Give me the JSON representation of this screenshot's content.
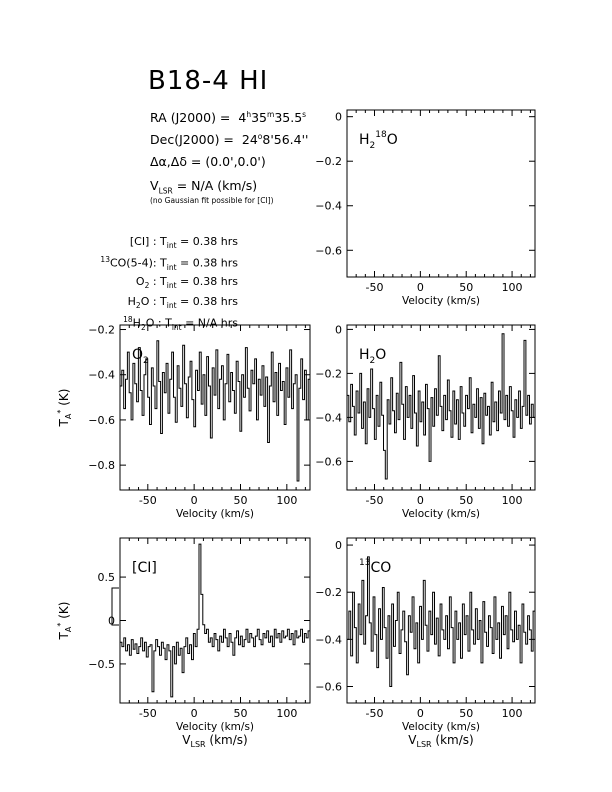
{
  "header": {
    "title": "B18-4 HI",
    "ra_label": "RA (J2000) =",
    "ra_h": "4",
    "ra_hu": "h",
    "ra_m": "35",
    "ra_mu": "m",
    "ra_s": "35.5",
    "ra_su": "s",
    "dec_label": "Dec(J2000) =",
    "dec_d": "24",
    "dec_du": "o",
    "dec_rest": "8'56.4''",
    "offset_label": "Δα,Δδ = (0.0',0.0')",
    "vlsr_v": "V",
    "vlsr_sub": "LSR",
    "vlsr_rest": " = N/A  (km/s)",
    "gauss_note": "(no Gaussian fit possible for [CI])",
    "t_int": [
      {
        "pre": "",
        "sup": "",
        "sub": "",
        "post": "[CI] : T",
        "tsub": "int",
        "value": " = 0.38 hrs"
      },
      {
        "pre": "",
        "sup": "13",
        "sub": "",
        "post": "CO(5-4): T",
        "tsub": "int",
        "value": " = 0.38 hrs"
      },
      {
        "pre": "O",
        "sup": "",
        "sub": "2",
        "post": " : T",
        "tsub": "int",
        "value": " = 0.38 hrs"
      },
      {
        "pre": "H",
        "sup": "",
        "sub": "2",
        "post": "O : T",
        "tsub": "int",
        "value": " = 0.38 hrs"
      },
      {
        "pre": "H",
        "sup": "18",
        "sub": "2",
        "post": "O : T",
        "tsub": "int",
        "value": " = N/A  hrs"
      }
    ]
  },
  "colors": {
    "line": "#000000",
    "background": "#ffffff"
  },
  "chart_data": [
    {
      "id": "h218o",
      "type": "line",
      "label_parts": [
        {
          "t": "H",
          "s": ""
        },
        {
          "t": "2",
          "s": "sub"
        },
        {
          "t": "18",
          "s": "sup"
        },
        {
          "t": "O",
          "s": ""
        }
      ],
      "xlabel": "Velocity (km/s)",
      "xlabel2": "",
      "ylabel": "",
      "xlim": [
        -80,
        125
      ],
      "ylim": [
        -0.72,
        0.03
      ],
      "xticks": [
        -50,
        0,
        50,
        100
      ],
      "yticks": [
        0,
        -0.2,
        -0.4,
        -0.6
      ],
      "ytick_labels": [
        "0",
        "−0.2",
        "−0.4",
        "−0.6"
      ],
      "series": []
    },
    {
      "id": "o2",
      "type": "line",
      "label_parts": [
        {
          "t": "O",
          "s": ""
        },
        {
          "t": "2",
          "s": "sub"
        }
      ],
      "xlabel": "Velocity (km/s)",
      "xlabel2": "",
      "ylabel": "T_A* (K)",
      "xlim": [
        -80,
        125
      ],
      "ylim": [
        -0.91,
        -0.18
      ],
      "xticks": [
        -50,
        0,
        50,
        100
      ],
      "yticks": [
        -0.2,
        -0.4,
        -0.6,
        -0.8
      ],
      "ytick_labels": [
        "−0.2",
        "−0.4",
        "−0.6",
        "−0.8"
      ],
      "series": [
        {
          "values": [
            -0.45,
            -0.38,
            -0.55,
            -0.42,
            -0.3,
            -0.48,
            -0.6,
            -0.35,
            -0.44,
            -0.52,
            -0.28,
            -0.47,
            -0.58,
            -0.4,
            -0.33,
            -0.5,
            -0.62,
            -0.37,
            -0.45,
            -0.55,
            -0.25,
            -0.43,
            -0.66,
            -0.39,
            -0.48,
            -0.35,
            -0.57,
            -0.42,
            -0.3,
            -0.5,
            -0.61,
            -0.36,
            -0.46,
            -0.54,
            -0.27,
            -0.44,
            -0.59,
            -0.41,
            -0.34,
            -0.51,
            -0.63,
            -0.38,
            -0.47,
            -0.3,
            -0.53,
            -0.4,
            -0.58,
            -0.32,
            -0.45,
            -0.68,
            -0.37,
            -0.49,
            -0.29,
            -0.55,
            -0.42,
            -0.36,
            -0.6,
            -0.44,
            -0.31,
            -0.52,
            -0.39,
            -0.47,
            -0.57,
            -0.34,
            -0.43,
            -0.65,
            -0.4,
            -0.5,
            -0.28,
            -0.46,
            -0.56,
            -0.38,
            -0.44,
            -0.33,
            -0.6,
            -0.42,
            -0.49,
            -0.36,
            -0.54,
            -0.41,
            -0.7,
            -0.45,
            -0.3,
            -0.52,
            -0.39,
            -0.58,
            -0.35,
            -0.47,
            -0.43,
            -0.62,
            -0.37,
            -0.5,
            -0.29,
            -0.55,
            -0.44,
            -0.4,
            -0.87,
            -0.46,
            -0.33,
            -0.51,
            -0.38,
            -0.6,
            -0.42
          ]
        }
      ]
    },
    {
      "id": "h2o",
      "type": "line",
      "label_parts": [
        {
          "t": "H",
          "s": ""
        },
        {
          "t": "2",
          "s": "sub"
        },
        {
          "t": "O",
          "s": ""
        }
      ],
      "xlabel": "Velocity (km/s)",
      "xlabel2": "",
      "ylabel": "",
      "xlim": [
        -80,
        125
      ],
      "ylim": [
        -0.73,
        0.02
      ],
      "xticks": [
        -50,
        0,
        50,
        100
      ],
      "yticks": [
        0,
        -0.2,
        -0.4,
        -0.6
      ],
      "ytick_labels": [
        "0",
        "−0.2",
        "−0.4",
        "−0.6"
      ],
      "series": [
        {
          "values": [
            -0.3,
            -0.42,
            -0.25,
            -0.35,
            -0.48,
            -0.28,
            -0.38,
            -0.2,
            -0.45,
            -0.33,
            -0.52,
            -0.27,
            -0.4,
            -0.18,
            -0.36,
            -0.5,
            -0.3,
            -0.44,
            -0.24,
            -0.39,
            -0.55,
            -0.68,
            -0.32,
            -0.43,
            -0.22,
            -0.37,
            -0.47,
            -0.29,
            -0.41,
            -0.15,
            -0.34,
            -0.5,
            -0.26,
            -0.4,
            -0.3,
            -0.45,
            -0.21,
            -0.38,
            -0.53,
            -0.28,
            -0.42,
            -0.33,
            -0.48,
            -0.25,
            -0.36,
            -0.6,
            -0.31,
            -0.44,
            -0.27,
            -0.39,
            -0.12,
            -0.35,
            -0.46,
            -0.3,
            -0.41,
            -0.23,
            -0.37,
            -0.49,
            -0.28,
            -0.43,
            -0.32,
            -0.5,
            -0.26,
            -0.38,
            -0.44,
            -0.3,
            -0.36,
            -0.22,
            -0.47,
            -0.34,
            -0.4,
            -0.27,
            -0.45,
            -0.31,
            -0.52,
            -0.29,
            -0.39,
            -0.35,
            -0.48,
            -0.24,
            -0.42,
            -0.33,
            -0.46,
            -0.28,
            -0.38,
            -0.02,
            -0.41,
            -0.3,
            -0.44,
            -0.26,
            -0.37,
            -0.49,
            -0.32,
            -0.4,
            -0.28,
            -0.45,
            -0.35,
            -0.05,
            -0.39,
            -0.3,
            -0.43,
            -0.34,
            -0.4
          ]
        }
      ]
    },
    {
      "id": "ci",
      "type": "line",
      "label_parts": [
        {
          "t": "[CI]",
          "s": ""
        }
      ],
      "xlabel": "Velocity (km/s)",
      "xlabel2": "V_LSR (km/s)",
      "ylabel": "T_A* (K)",
      "xlim": [
        -80,
        125
      ],
      "ylim": [
        -0.95,
        0.95
      ],
      "xticks": [
        -50,
        0,
        50,
        100
      ],
      "yticks": [
        0.5,
        0,
        -0.5
      ],
      "ytick_labels": [
        "0.5",
        "0",
        "−0.5"
      ],
      "series": [
        {
          "values": [
            -0.25,
            -0.3,
            -0.2,
            -0.35,
            -0.28,
            -0.4,
            -0.22,
            -0.33,
            -0.27,
            -0.38,
            -0.3,
            -0.2,
            -0.35,
            -0.25,
            -0.42,
            -0.3,
            -0.28,
            -0.82,
            -0.35,
            -0.22,
            -0.3,
            -0.4,
            -0.25,
            -0.32,
            -0.45,
            -0.28,
            -0.35,
            -0.88,
            -0.3,
            -0.5,
            -0.25,
            -0.4,
            -0.32,
            -0.6,
            -0.3,
            -0.2,
            -0.38,
            -0.28,
            -0.45,
            -0.15,
            -0.3,
            -0.1,
            0.88,
            0.3,
            -0.05,
            -0.15,
            -0.1,
            -0.25,
            -0.2,
            -0.3,
            -0.15,
            -0.22,
            -0.35,
            -0.18,
            -0.25,
            -0.1,
            -0.2,
            -0.3,
            -0.15,
            -0.25,
            -0.4,
            -0.2,
            -0.12,
            -0.28,
            -0.18,
            -0.3,
            -0.22,
            -0.1,
            -0.25,
            -0.15,
            -0.2,
            -0.3,
            -0.18,
            -0.1,
            -0.22,
            -0.28,
            -0.15,
            -0.2,
            -0.12,
            -0.25,
            -0.18,
            -0.3,
            -0.1,
            -0.2,
            -0.15,
            -0.25,
            -0.12,
            -0.2,
            -0.18,
            -0.1,
            -0.22,
            -0.15,
            -0.28,
            -0.12,
            -0.2,
            -0.18,
            -0.1,
            -0.25,
            -0.15,
            -0.2,
            -0.12
          ]
        }
      ]
    },
    {
      "id": "13co",
      "type": "line",
      "label_parts": [
        {
          "t": "13",
          "s": "sup"
        },
        {
          "t": "CO",
          "s": ""
        }
      ],
      "xlabel": "Velocity (km/s)",
      "xlabel2": "V_LSR (km/s)",
      "ylabel": "",
      "xlim": [
        -80,
        125
      ],
      "ylim": [
        -0.67,
        0.03
      ],
      "xticks": [
        -50,
        0,
        50,
        100
      ],
      "yticks": [
        0,
        -0.2,
        -0.4,
        -0.6
      ],
      "ytick_labels": [
        "0",
        "−0.2",
        "−0.4",
        "−0.6"
      ],
      "series": [
        {
          "values": [
            -0.4,
            -0.28,
            -0.47,
            -0.2,
            -0.35,
            -0.5,
            -0.25,
            -0.38,
            -0.15,
            -0.42,
            -0.3,
            -0.05,
            -0.33,
            -0.45,
            -0.22,
            -0.38,
            -0.52,
            -0.27,
            -0.4,
            -0.18,
            -0.35,
            -0.48,
            -0.3,
            -0.6,
            -0.25,
            -0.43,
            -0.32,
            -0.2,
            -0.46,
            -0.36,
            -0.28,
            -0.41,
            -0.55,
            -0.3,
            -0.37,
            -0.22,
            -0.44,
            -0.33,
            -0.5,
            -0.26,
            -0.4,
            -0.15,
            -0.34,
            -0.45,
            -0.28,
            -0.38,
            -0.2,
            -0.42,
            -0.31,
            -0.47,
            -0.25,
            -0.36,
            -0.4,
            -0.3,
            -0.44,
            -0.22,
            -0.35,
            -0.5,
            -0.28,
            -0.4,
            -0.33,
            -0.48,
            -0.25,
            -0.38,
            -0.3,
            -0.45,
            -0.2,
            -0.36,
            -0.42,
            -0.27,
            -0.4,
            -0.32,
            -0.5,
            -0.24,
            -0.37,
            -0.43,
            -0.3,
            -0.35,
            -0.46,
            -0.22,
            -0.4,
            -0.33,
            -0.48,
            -0.26,
            -0.38,
            -0.3,
            -0.44,
            -0.2,
            -0.36,
            -0.41,
            -0.28,
            -0.4,
            -0.34,
            -0.5,
            -0.25,
            -0.37,
            -0.42,
            -0.3,
            -0.36,
            -0.45,
            -0.28
          ]
        }
      ]
    }
  ]
}
